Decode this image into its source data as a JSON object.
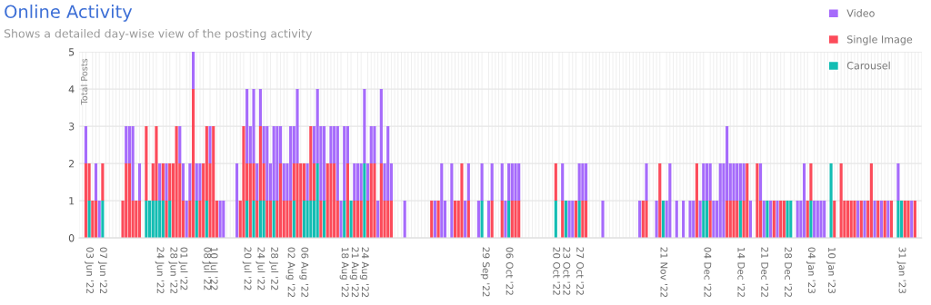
{
  "chart_data": {
    "type": "bar",
    "stacked": true,
    "title": "Online Activity",
    "subtitle": "Shows a detailed day-wise view of the posting activity",
    "ylabel": "Total Posts",
    "x": [
      "2022-06-02",
      "2022-06-03",
      "2022-06-04",
      "2022-06-05",
      "2022-06-06",
      "2022-06-07",
      "2022-06-13",
      "2022-06-14",
      "2022-06-15",
      "2022-06-16",
      "2022-06-17",
      "2022-06-18",
      "2022-06-20",
      "2022-06-21",
      "2022-06-22",
      "2022-06-23",
      "2022-06-24",
      "2022-06-25",
      "2022-06-26",
      "2022-06-27",
      "2022-06-28",
      "2022-06-29",
      "2022-06-30",
      "2022-07-01",
      "2022-07-02",
      "2022-07-03",
      "2022-07-04",
      "2022-07-05",
      "2022-07-06",
      "2022-07-07",
      "2022-07-08",
      "2022-07-09",
      "2022-07-10",
      "2022-07-11",
      "2022-07-12",
      "2022-07-13",
      "2022-07-17",
      "2022-07-18",
      "2022-07-19",
      "2022-07-20",
      "2022-07-21",
      "2022-07-22",
      "2022-07-23",
      "2022-07-24",
      "2022-07-25",
      "2022-07-26",
      "2022-07-27",
      "2022-07-28",
      "2022-07-29",
      "2022-07-30",
      "2022-07-31",
      "2022-08-01",
      "2022-08-02",
      "2022-08-03",
      "2022-08-04",
      "2022-08-05",
      "2022-08-06",
      "2022-08-07",
      "2022-08-08",
      "2022-08-09",
      "2022-08-10",
      "2022-08-11",
      "2022-08-12",
      "2022-08-13",
      "2022-08-14",
      "2022-08-15",
      "2022-08-16",
      "2022-08-17",
      "2022-08-18",
      "2022-08-19",
      "2022-08-20",
      "2022-08-21",
      "2022-08-22",
      "2022-08-23",
      "2022-08-24",
      "2022-08-25",
      "2022-08-26",
      "2022-08-27",
      "2022-08-28",
      "2022-08-29",
      "2022-08-30",
      "2022-08-31",
      "2022-09-01",
      "2022-09-05",
      "2022-09-13",
      "2022-09-14",
      "2022-09-15",
      "2022-09-16",
      "2022-09-17",
      "2022-09-19",
      "2022-09-20",
      "2022-09-21",
      "2022-09-22",
      "2022-09-23",
      "2022-09-24",
      "2022-09-27",
      "2022-09-28",
      "2022-09-30",
      "2022-10-01",
      "2022-10-04",
      "2022-10-05",
      "2022-10-06",
      "2022-10-07",
      "2022-10-08",
      "2022-10-09",
      "2022-10-20",
      "2022-10-22",
      "2022-10-23",
      "2022-10-24",
      "2022-10-25",
      "2022-10-26",
      "2022-10-27",
      "2022-10-28",
      "2022-10-29",
      "2022-11-03",
      "2022-11-14",
      "2022-11-15",
      "2022-11-16",
      "2022-11-19",
      "2022-11-20",
      "2022-11-21",
      "2022-11-22",
      "2022-11-23",
      "2022-11-25",
      "2022-11-27",
      "2022-11-29",
      "2022-11-30",
      "2022-12-01",
      "2022-12-02",
      "2022-12-03",
      "2022-12-04",
      "2022-12-05",
      "2022-12-06",
      "2022-12-07",
      "2022-12-08",
      "2022-12-09",
      "2022-12-10",
      "2022-12-11",
      "2022-12-12",
      "2022-12-13",
      "2022-12-14",
      "2022-12-15",
      "2022-12-16",
      "2022-12-17",
      "2022-12-19",
      "2022-12-20",
      "2022-12-21",
      "2022-12-22",
      "2022-12-23",
      "2022-12-24",
      "2022-12-25",
      "2022-12-26",
      "2022-12-27",
      "2022-12-28",
      "2022-12-29",
      "2022-12-31",
      "2023-01-01",
      "2023-01-02",
      "2023-01-03",
      "2023-01-04",
      "2023-01-05",
      "2023-01-06",
      "2023-01-07",
      "2023-01-08",
      "2023-01-10",
      "2023-01-11",
      "2023-01-13",
      "2023-01-14",
      "2023-01-15",
      "2023-01-16",
      "2023-01-17",
      "2023-01-18",
      "2023-01-19",
      "2023-01-20",
      "2023-01-21",
      "2023-01-22",
      "2023-01-23",
      "2023-01-24",
      "2023-01-25",
      "2023-01-26",
      "2023-01-27",
      "2023-01-28",
      "2023-01-30",
      "2023-01-31",
      "2023-02-01",
      "2023-02-02",
      "2023-02-03",
      "2023-02-04"
    ],
    "series": [
      {
        "name": "Carousel",
        "color": "#13bdb3",
        "values": [
          0,
          1,
          0,
          0,
          0,
          1,
          0,
          0,
          0,
          0,
          0,
          0,
          1,
          1,
          1,
          1,
          1,
          1,
          0,
          1,
          0,
          0,
          0,
          0,
          0,
          0,
          0,
          1,
          0,
          0,
          1,
          0,
          0,
          0,
          0,
          0,
          0,
          0,
          0,
          1,
          0,
          1,
          0,
          1,
          1,
          0,
          0,
          1,
          0,
          0,
          0,
          0,
          0,
          1,
          0,
          0,
          1,
          1,
          1,
          1,
          2,
          0,
          1,
          0,
          0,
          0,
          0,
          0,
          1,
          0,
          1,
          0,
          0,
          0,
          2,
          0,
          0,
          0,
          0,
          0,
          0,
          0,
          0,
          0,
          0,
          0,
          0,
          0,
          0,
          0,
          0,
          0,
          0,
          0,
          0,
          0,
          1,
          0,
          0,
          0,
          0,
          1,
          0,
          0,
          0,
          1,
          0,
          1,
          0,
          0,
          0,
          1,
          0,
          0,
          0,
          0,
          0,
          0,
          0,
          0,
          1,
          0,
          0,
          0,
          0,
          0,
          0,
          0,
          0,
          1,
          1,
          0,
          0,
          0,
          0,
          0,
          0,
          0,
          0,
          0,
          1,
          0,
          0,
          0,
          0,
          0,
          0,
          1,
          0,
          0,
          0,
          0,
          0,
          1,
          1,
          0,
          0,
          0,
          0,
          1,
          0,
          0,
          0,
          0,
          2,
          0,
          0,
          0,
          0,
          0,
          0,
          0,
          0,
          0,
          0,
          0,
          0,
          0,
          0,
          0,
          0,
          0,
          1,
          1,
          0,
          0,
          0,
          0
        ]
      },
      {
        "name": "Single Image",
        "color": "#fc4b5a",
        "values": [
          2,
          1,
          1,
          1,
          0,
          1,
          1,
          2,
          2,
          1,
          1,
          1,
          2,
          0,
          1,
          2,
          0,
          1,
          1,
          1,
          2,
          3,
          2,
          1,
          0,
          1,
          4,
          0,
          1,
          2,
          2,
          2,
          3,
          1,
          0,
          0,
          0,
          1,
          3,
          1,
          2,
          1,
          1,
          2,
          1,
          1,
          1,
          0,
          1,
          2,
          1,
          1,
          1,
          1,
          2,
          2,
          1,
          0,
          2,
          1,
          0,
          1,
          0,
          2,
          2,
          2,
          1,
          0,
          0,
          2,
          0,
          1,
          1,
          1,
          0,
          1,
          2,
          2,
          0,
          2,
          1,
          1,
          1,
          0,
          1,
          0,
          1,
          0,
          0,
          0,
          1,
          1,
          2,
          0,
          1,
          0,
          0,
          0,
          1,
          1,
          0,
          0,
          1,
          1,
          1,
          1,
          1,
          0,
          0,
          0,
          1,
          0,
          1,
          1,
          0,
          0,
          1,
          1,
          0,
          2,
          0,
          0,
          0,
          0,
          0,
          0,
          0,
          2,
          0,
          0,
          0,
          1,
          0,
          0,
          0,
          0,
          1,
          1,
          1,
          1,
          0,
          1,
          2,
          0,
          2,
          1,
          0,
          0,
          0,
          1,
          0,
          1,
          1,
          0,
          0,
          0,
          0,
          0,
          1,
          1,
          0,
          0,
          0,
          0,
          0,
          1,
          2,
          1,
          1,
          1,
          1,
          0,
          1,
          0,
          1,
          2,
          0,
          1,
          0,
          1,
          0,
          1,
          0,
          0,
          1,
          1,
          0,
          1
        ]
      },
      {
        "name": "Video",
        "color": "#a66bfb",
        "values": [
          1,
          0,
          0,
          1,
          1,
          0,
          0,
          1,
          1,
          2,
          0,
          1,
          0,
          0,
          0,
          0,
          1,
          0,
          1,
          0,
          0,
          0,
          1,
          1,
          1,
          1,
          1,
          1,
          1,
          0,
          0,
          1,
          0,
          0,
          1,
          1,
          2,
          0,
          0,
          2,
          1,
          2,
          1,
          1,
          1,
          2,
          1,
          2,
          2,
          1,
          1,
          1,
          2,
          1,
          2,
          0,
          0,
          1,
          0,
          1,
          2,
          2,
          2,
          0,
          1,
          1,
          2,
          1,
          2,
          1,
          0,
          1,
          1,
          1,
          2,
          1,
          1,
          1,
          1,
          2,
          1,
          2,
          1,
          1,
          0,
          1,
          0,
          2,
          1,
          2,
          0,
          0,
          0,
          1,
          1,
          1,
          1,
          1,
          1,
          1,
          1,
          1,
          1,
          1,
          1,
          0,
          1,
          0,
          1,
          1,
          0,
          1,
          1,
          1,
          1,
          1,
          0,
          1,
          1,
          0,
          0,
          1,
          2,
          1,
          1,
          1,
          1,
          0,
          1,
          1,
          1,
          1,
          1,
          1,
          2,
          2,
          2,
          1,
          1,
          1,
          1,
          1,
          0,
          1,
          0,
          1,
          1,
          0,
          1,
          0,
          1,
          0,
          0,
          0,
          0,
          1,
          1,
          2,
          0,
          0,
          1,
          1,
          1,
          1,
          0,
          0,
          0,
          0,
          0,
          0,
          0,
          1,
          0,
          1,
          0,
          0,
          1,
          0,
          1,
          0,
          1,
          0,
          1,
          0,
          0,
          0,
          1,
          0
        ]
      }
    ],
    "xlim": [
      "2022-05-31",
      "2023-02-06"
    ],
    "xticks": [
      {
        "value": "2022-06-03",
        "label": "03 Jun '22"
      },
      {
        "value": "2022-06-07",
        "label": "07 Jun '22"
      },
      {
        "value": "2022-06-24",
        "label": "24 Jun '22"
      },
      {
        "value": "2022-06-28",
        "label": "28 Jun '22"
      },
      {
        "value": "2022-07-01",
        "label": "01 Jul '22"
      },
      {
        "value": "2022-07-08",
        "label": "08 Jul '22"
      },
      {
        "value": "2022-07-10",
        "label": "10 Jul '22"
      },
      {
        "value": "2022-07-20",
        "label": "20 Jul '22"
      },
      {
        "value": "2022-07-24",
        "label": "24 Jul '22"
      },
      {
        "value": "2022-07-28",
        "label": "28 Jul '22"
      },
      {
        "value": "2022-08-02",
        "label": "02 Aug '22"
      },
      {
        "value": "2022-08-06",
        "label": "06 Aug '22"
      },
      {
        "value": "2022-08-18",
        "label": "18 Aug '22"
      },
      {
        "value": "2022-08-21",
        "label": "21 Aug '22"
      },
      {
        "value": "2022-08-24",
        "label": "24 Aug '22"
      },
      {
        "value": "2022-09-29",
        "label": "29 Sep '22"
      },
      {
        "value": "2022-10-06",
        "label": "06 Oct '22"
      },
      {
        "value": "2022-10-20",
        "label": "20 Oct '22"
      },
      {
        "value": "2022-10-23",
        "label": "23 Oct '22"
      },
      {
        "value": "2022-10-27",
        "label": "27 Oct '22"
      },
      {
        "value": "2022-11-21",
        "label": "21 Nov '22"
      },
      {
        "value": "2022-12-04",
        "label": "04 Dec '22"
      },
      {
        "value": "2022-12-14",
        "label": "14 Dec '22"
      },
      {
        "value": "2022-12-21",
        "label": "21 Dec '22"
      },
      {
        "value": "2022-12-28",
        "label": "28 Dec '22"
      },
      {
        "value": "2023-01-04",
        "label": "04 Jan '23"
      },
      {
        "value": "2023-01-10",
        "label": "10 Jan '23"
      },
      {
        "value": "2023-01-31",
        "label": "31 Jan '23"
      }
    ],
    "ylim": [
      0,
      5
    ],
    "yticks": [
      0,
      1,
      2,
      3,
      4,
      5
    ],
    "grid": true,
    "legend": "top right"
  }
}
